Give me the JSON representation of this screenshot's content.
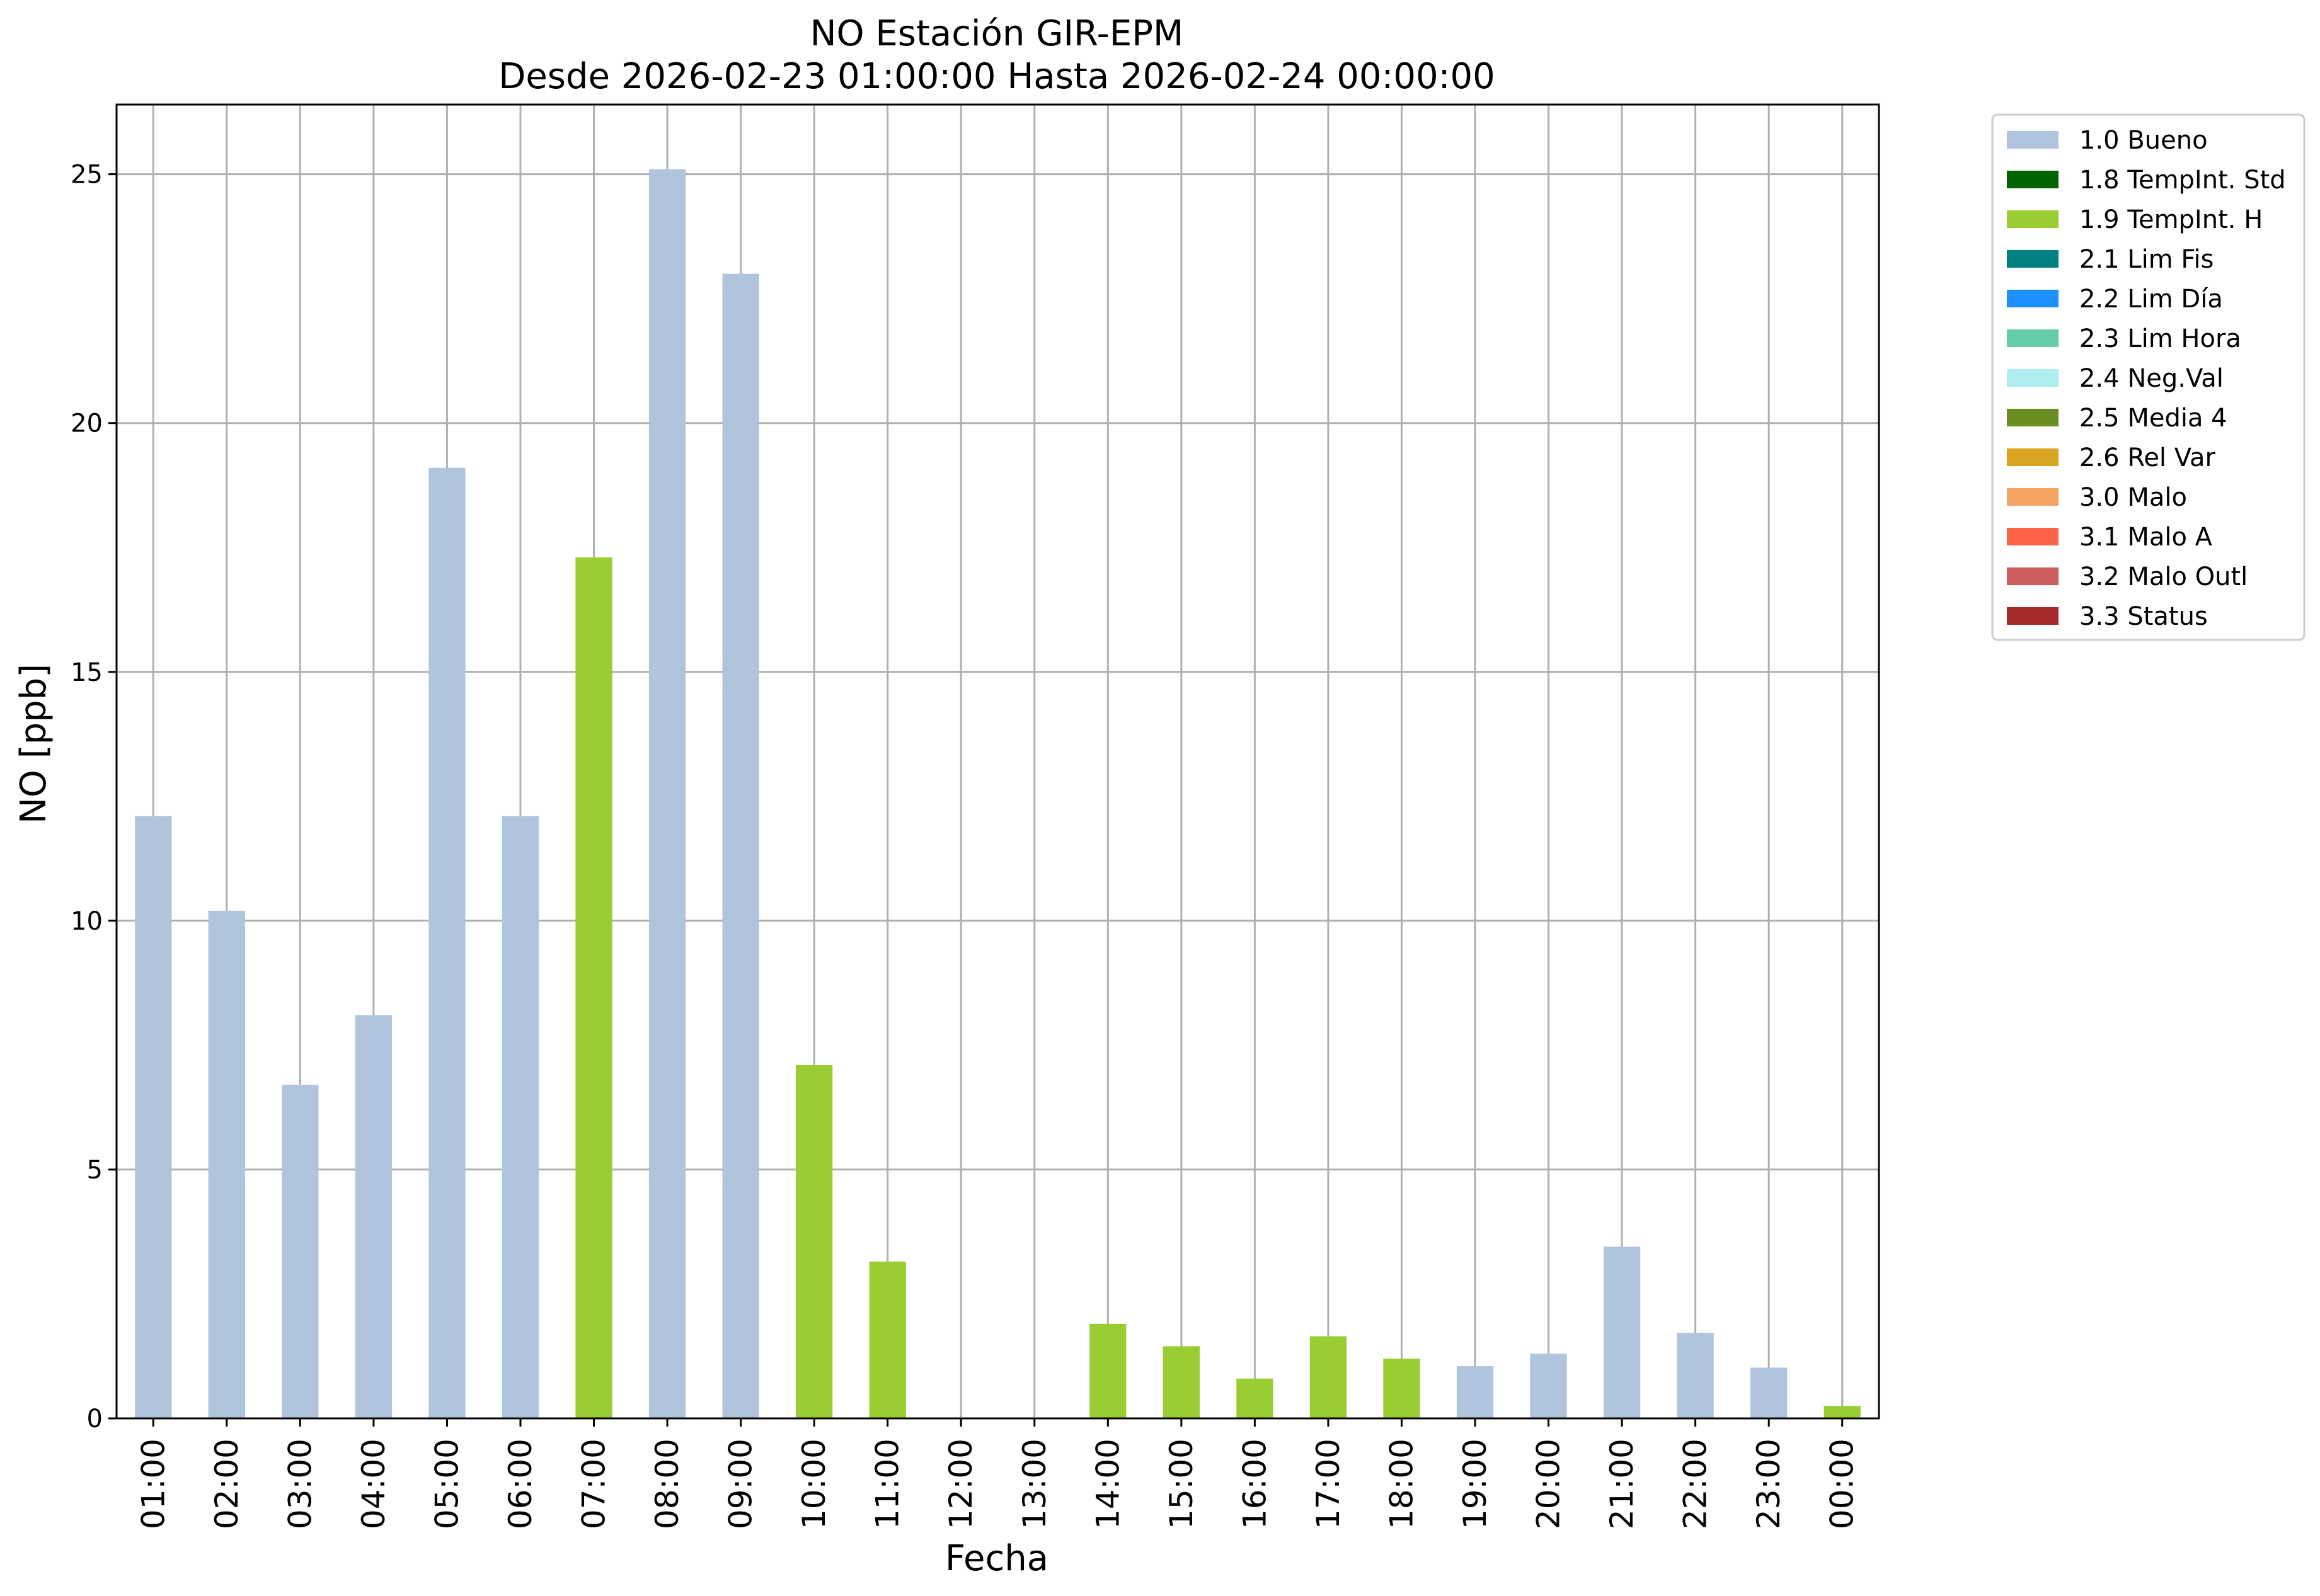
{
  "chart_data": {
    "type": "bar",
    "title": "NO Estación GIR-EPM",
    "subtitle": "Desde 2026-02-23 01:00:00 Hasta 2026-02-24 00:00:00",
    "xlabel": "Fecha",
    "ylabel": "NO [ppb]",
    "ylim": [
      0,
      26.4
    ],
    "yticks": [
      0,
      5,
      10,
      15,
      20,
      25
    ],
    "grid": true,
    "legend_position": "outside-top-right",
    "categories": [
      "01:00",
      "02:00",
      "03:00",
      "04:00",
      "05:00",
      "06:00",
      "07:00",
      "08:00",
      "09:00",
      "10:00",
      "11:00",
      "12:00",
      "13:00",
      "14:00",
      "15:00",
      "16:00",
      "17:00",
      "18:00",
      "19:00",
      "20:00",
      "21:00",
      "22:00",
      "23:00",
      "00:00"
    ],
    "values": [
      12.1,
      10.2,
      6.7,
      8.1,
      19.1,
      12.1,
      17.3,
      25.1,
      23.0,
      7.1,
      3.15,
      null,
      null,
      1.9,
      1.45,
      0.8,
      1.65,
      1.2,
      1.05,
      1.3,
      3.45,
      1.72,
      1.02,
      0.25
    ],
    "flags": [
      "1.0 Bueno",
      "1.0 Bueno",
      "1.0 Bueno",
      "1.0 Bueno",
      "1.0 Bueno",
      "1.0 Bueno",
      "1.9 TempInt. H",
      "1.0 Bueno",
      "1.0 Bueno",
      "1.9 TempInt. H",
      "1.9 TempInt. H",
      null,
      null,
      "1.9 TempInt. H",
      "1.9 TempInt. H",
      "1.9 TempInt. H",
      "1.9 TempInt. H",
      "1.9 TempInt. H",
      "1.0 Bueno",
      "1.0 Bueno",
      "1.0 Bueno",
      "1.0 Bueno",
      "1.0 Bueno",
      "1.9 TempInt. H"
    ],
    "legend": [
      {
        "label": "1.0 Bueno",
        "color": "#b0c4de"
      },
      {
        "label": "1.8 TempInt. Std",
        "color": "#006400"
      },
      {
        "label": "1.9 TempInt. H",
        "color": "#9acd32"
      },
      {
        "label": "2.1 Lim Fis",
        "color": "#008080"
      },
      {
        "label": "2.2 Lim Día",
        "color": "#1e90ff"
      },
      {
        "label": "2.3 Lim Hora",
        "color": "#66cdaa"
      },
      {
        "label": "2.4 Neg.Val",
        "color": "#afeeee"
      },
      {
        "label": "2.5 Media 4",
        "color": "#6b8e23"
      },
      {
        "label": "2.6 Rel Var",
        "color": "#daa520"
      },
      {
        "label": "3.0 Malo",
        "color": "#f4a460"
      },
      {
        "label": "3.1 Malo A",
        "color": "#ff6347"
      },
      {
        "label": "3.2 Malo Outl",
        "color": "#cd5c5c"
      },
      {
        "label": "3.3 Status",
        "color": "#a52a2a"
      }
    ]
  }
}
